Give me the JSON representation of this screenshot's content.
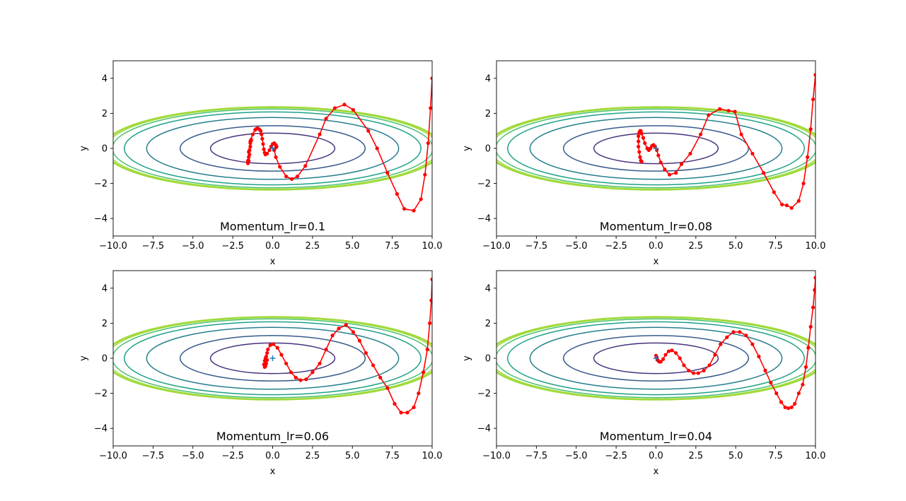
{
  "chart_data": [
    {
      "type": "line",
      "title": "Momentum_lr=0.1",
      "xlabel": "x",
      "ylabel": "y",
      "xlim": [
        -10,
        10
      ],
      "ylim": [
        -5,
        5
      ],
      "xticks": [
        "−10.0",
        "−7.5",
        "−5.0",
        "−2.5",
        "0.0",
        "2.5",
        "5.0",
        "7.5",
        "10.0"
      ],
      "yticks": [
        "−4",
        "−2",
        "0",
        "2",
        "4"
      ],
      "start_marker": [
        0,
        0
      ],
      "series": [
        {
          "x": [
            10.0,
            9.9,
            9.75,
            9.55,
            9.3,
            8.85,
            8.25,
            7.8,
            7.2,
            6.55,
            6.0,
            5.05,
            4.5,
            3.9,
            3.35,
            2.95,
            2.05,
            1.55,
            1.2,
            0.85,
            0.45,
            0.2,
            0.1,
            0.2,
            0.25,
            0.2,
            0.1,
            0.0,
            -0.1,
            -0.2,
            -0.35,
            -0.45,
            -0.5,
            -0.55,
            -0.6,
            -0.65,
            -0.7,
            -0.75,
            -0.85,
            -0.95,
            -1.05,
            -1.1,
            -1.25,
            -1.4,
            -1.5,
            -1.55,
            -1.55,
            -1.5,
            -1.45,
            -1.4,
            -1.35,
            -1.35,
            -1.4,
            -1.45,
            -1.5,
            -1.55
          ],
          "y": [
            4.0,
            2.3,
            0.3,
            -1.5,
            -2.9,
            -3.55,
            -3.45,
            -2.6,
            -1.4,
            0.0,
            1.0,
            2.2,
            2.5,
            2.3,
            1.7,
            0.8,
            -1.0,
            -1.6,
            -1.75,
            -1.6,
            -1.05,
            -0.5,
            -0.1,
            0.05,
            0.1,
            0.2,
            0.3,
            0.25,
            0.1,
            -0.1,
            -0.3,
            -0.35,
            -0.25,
            -0.05,
            0.25,
            0.55,
            0.8,
            1.0,
            1.1,
            1.15,
            1.1,
            1.05,
            0.8,
            0.4,
            -0.2,
            -0.7,
            -0.85,
            -0.7,
            -0.35,
            0.1,
            0.45,
            0.5,
            0.3,
            -0.1,
            -0.5,
            -0.85
          ]
        }
      ]
    },
    {
      "type": "line",
      "title": "Momentum_lr=0.08",
      "xlabel": "x",
      "ylabel": "y",
      "xlim": [
        -10,
        10
      ],
      "ylim": [
        -5,
        5
      ],
      "xticks": [
        "−10.0",
        "−7.5",
        "−5.0",
        "−2.5",
        "0.0",
        "2.5",
        "5.0",
        "7.5",
        "10.0"
      ],
      "yticks": [
        "−4",
        "−2",
        "0",
        "2",
        "4"
      ],
      "start_marker": [
        0,
        0
      ],
      "series": [
        {
          "x": [
            10.0,
            9.85,
            9.7,
            9.5,
            9.25,
            8.95,
            8.5,
            8.2,
            7.9,
            7.4,
            6.75,
            6.05,
            5.35,
            4.95,
            4.55,
            4.0,
            3.3,
            2.8,
            2.15,
            1.6,
            1.25,
            0.85,
            0.55,
            0.3,
            0.15,
            0.05,
            -0.05,
            -0.15,
            -0.25,
            -0.35,
            -0.45,
            -0.55,
            -0.7,
            -0.8,
            -0.9,
            -0.95,
            -1.0,
            -1.05,
            -1.1,
            -1.1,
            -1.1,
            -1.05,
            -1.0,
            -0.95,
            -0.9
          ],
          "y": [
            4.2,
            2.8,
            1.1,
            -0.5,
            -2.0,
            -3.0,
            -3.4,
            -3.25,
            -3.2,
            -2.5,
            -1.4,
            -0.3,
            0.8,
            2.1,
            2.15,
            2.25,
            1.9,
            0.8,
            -0.3,
            -0.9,
            -1.4,
            -1.5,
            -1.2,
            -0.8,
            -0.4,
            -0.1,
            0.1,
            0.2,
            0.15,
            0.0,
            -0.1,
            0.0,
            0.3,
            0.6,
            0.85,
            1.0,
            1.0,
            0.9,
            0.7,
            0.4,
            0.1,
            -0.2,
            -0.5,
            -0.7,
            -0.75
          ]
        }
      ]
    },
    {
      "type": "line",
      "title": "Momentum_lr=0.06",
      "xlabel": "x",
      "ylabel": "y",
      "xlim": [
        -10,
        10
      ],
      "ylim": [
        -5,
        5
      ],
      "xticks": [
        "−10.0",
        "−7.5",
        "−5.0",
        "−2.5",
        "0.0",
        "2.5",
        "5.0",
        "7.5",
        "10.0"
      ],
      "yticks": [
        "−4",
        "−2",
        "0",
        "2",
        "4"
      ],
      "start_marker": [
        0,
        0
      ],
      "series": [
        {
          "x": [
            10.0,
            9.95,
            9.85,
            9.7,
            9.45,
            9.15,
            8.85,
            8.45,
            8.05,
            7.65,
            7.2,
            6.75,
            6.3,
            5.85,
            5.45,
            5.05,
            4.6,
            4.15,
            3.75,
            3.35,
            2.95,
            2.5,
            2.1,
            1.75,
            1.45,
            1.15,
            0.85,
            0.55,
            0.3,
            0.05,
            -0.15,
            -0.3,
            -0.35,
            -0.4,
            -0.45,
            -0.5,
            -0.55,
            -0.5,
            -0.45,
            -0.4,
            -0.35
          ],
          "y": [
            4.5,
            3.3,
            2.0,
            0.5,
            -0.8,
            -2.0,
            -2.8,
            -3.1,
            -3.1,
            -2.6,
            -1.7,
            -1.1,
            -0.4,
            0.3,
            1.0,
            1.5,
            1.9,
            1.7,
            1.3,
            0.5,
            -0.3,
            -0.8,
            -1.2,
            -1.25,
            -1.1,
            -0.8,
            -0.3,
            0.2,
            0.6,
            0.8,
            0.75,
            0.5,
            0.3,
            0.1,
            0.0,
            -0.15,
            -0.35,
            -0.5,
            -0.45,
            -0.3,
            -0.1
          ]
        }
      ]
    },
    {
      "type": "line",
      "title": "Momentum_lr=0.04",
      "xlabel": "x",
      "ylabel": "y",
      "xlim": [
        -10,
        10
      ],
      "ylim": [
        -5,
        5
      ],
      "xticks": [
        "−10.0",
        "−7.5",
        "−5.0",
        "−2.5",
        "0.0",
        "2.5",
        "5.0",
        "7.5",
        "10.0"
      ],
      "yticks": [
        "−4",
        "−2",
        "0",
        "2",
        "4"
      ],
      "start_marker": [
        0,
        0
      ],
      "series": [
        {
          "x": [
            10.0,
            9.95,
            9.85,
            9.7,
            9.55,
            9.4,
            9.2,
            8.95,
            8.7,
            8.5,
            8.3,
            8.1,
            7.85,
            7.55,
            7.2,
            6.85,
            6.45,
            6.05,
            5.65,
            5.25,
            4.85,
            4.45,
            4.05,
            3.7,
            3.35,
            3.0,
            2.65,
            2.35,
            2.05,
            1.75,
            1.5,
            1.25,
            1.0,
            0.8,
            0.6,
            0.45,
            0.3,
            0.2,
            0.1,
            0.05,
            0.0
          ],
          "y": [
            4.6,
            3.9,
            2.9,
            1.8,
            0.6,
            -0.5,
            -1.5,
            -2.0,
            -2.6,
            -2.8,
            -2.85,
            -2.8,
            -2.5,
            -2.0,
            -1.4,
            -0.7,
            0.1,
            0.8,
            1.3,
            1.5,
            1.5,
            1.2,
            0.8,
            0.2,
            -0.4,
            -0.7,
            -0.85,
            -0.85,
            -0.7,
            -0.4,
            0.0,
            0.3,
            0.45,
            0.4,
            0.2,
            -0.05,
            -0.2,
            -0.2,
            -0.1,
            0.05,
            0.15
          ]
        }
      ]
    }
  ]
}
